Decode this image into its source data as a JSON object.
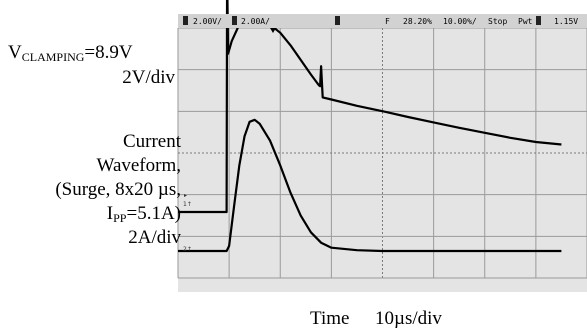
{
  "labels": {
    "clamp_v_prefix": "V",
    "clamp_v_sub": "CLAMPING",
    "clamp_v_value": "=8.9V",
    "volt_div": "2V/div",
    "current_line1": "Current",
    "current_line2": "Waveform,",
    "current_line3": "(Surge, 8x20 µs,",
    "ipp_prefix": "I",
    "ipp_sub": "PP",
    "ipp_value": "=5.1A)",
    "amp_div": "2A/div",
    "time_label": "Time",
    "time_div": "10µs/div"
  },
  "status_bar": {
    "ch1_scale": "2.00V/",
    "ch2_scale": "2.00A/",
    "trigger_pos": "28.20%",
    "time_scale": "10.00%/",
    "run_state": "Stop",
    "trigger_src": "Pwt",
    "trigger_level": "1.15V"
  },
  "chart_data": {
    "type": "line",
    "grid": true,
    "divisions": {
      "x": 10,
      "y": 8
    },
    "xlabel": "Time",
    "x_unit": "10µs/div",
    "series": [
      {
        "name": "V_CLAMPING",
        "unit": "2V/div",
        "color": "#000000",
        "x": [
          0,
          9.5,
          9.6,
          9.8,
          10.5,
          12,
          14,
          16,
          18,
          20,
          22,
          24,
          26,
          27.5,
          27.8,
          28.0,
          28.3,
          30,
          35,
          40,
          45,
          50,
          55,
          60,
          65,
          70,
          75
        ],
        "y": [
          0.0,
          0.0,
          5.8,
          3.8,
          4.1,
          4.5,
          4.65,
          4.62,
          4.5,
          4.3,
          4.0,
          3.65,
          3.3,
          3.05,
          3.02,
          3.5,
          2.75,
          2.7,
          2.55,
          2.42,
          2.28,
          2.15,
          2.02,
          1.9,
          1.78,
          1.68,
          1.62
        ]
      },
      {
        "name": "Current Waveform",
        "unit": "2A/div",
        "color": "#000000",
        "x": [
          0,
          9.5,
          10,
          11,
          12,
          13,
          14,
          15,
          16,
          18,
          20,
          22,
          24,
          26,
          28,
          30,
          35,
          40,
          50,
          60,
          75
        ],
        "y": [
          0.0,
          0.0,
          0.12,
          1.1,
          2.05,
          2.75,
          3.1,
          3.15,
          3.05,
          2.65,
          2.05,
          1.4,
          0.85,
          0.45,
          0.2,
          0.08,
          0.02,
          0.0,
          0.0,
          0.0,
          0.0
        ]
      }
    ]
  }
}
